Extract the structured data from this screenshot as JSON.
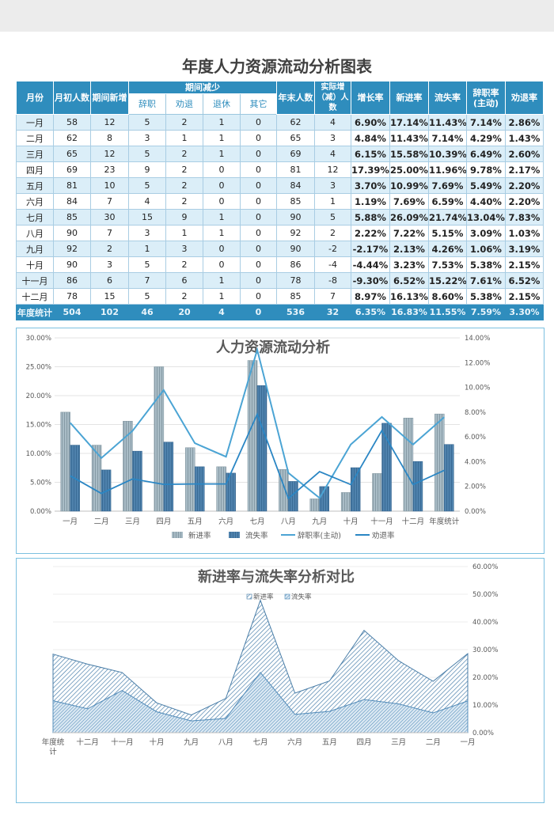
{
  "page": {
    "title": "年度人力资源流动分析图表"
  },
  "table": {
    "headers": {
      "month": "月份",
      "start": "月初人数",
      "new": "期间新增",
      "reduce": "期间减少",
      "resign": "辞职",
      "dismiss": "劝退",
      "retire": "退休",
      "other": "其它",
      "end": "年末人数",
      "net": "实际增（减）人数",
      "growth": "增长率",
      "newrate": "新进率",
      "lossrate": "流失率",
      "resignrate": "辞职率(主动)",
      "dismissrate": "劝退率"
    },
    "rows": [
      [
        "一月",
        "58",
        "12",
        "5",
        "2",
        "1",
        "0",
        "62",
        "4",
        "6.90%",
        "17.14%",
        "11.43%",
        "7.14%",
        "2.86%"
      ],
      [
        "二月",
        "62",
        "8",
        "3",
        "1",
        "1",
        "0",
        "65",
        "3",
        "4.84%",
        "11.43%",
        "7.14%",
        "4.29%",
        "1.43%"
      ],
      [
        "三月",
        "65",
        "12",
        "5",
        "2",
        "1",
        "0",
        "69",
        "4",
        "6.15%",
        "15.58%",
        "10.39%",
        "6.49%",
        "2.60%"
      ],
      [
        "四月",
        "69",
        "23",
        "9",
        "2",
        "0",
        "0",
        "81",
        "12",
        "17.39%",
        "25.00%",
        "11.96%",
        "9.78%",
        "2.17%"
      ],
      [
        "五月",
        "81",
        "10",
        "5",
        "2",
        "0",
        "0",
        "84",
        "3",
        "3.70%",
        "10.99%",
        "7.69%",
        "5.49%",
        "2.20%"
      ],
      [
        "六月",
        "84",
        "7",
        "4",
        "2",
        "0",
        "0",
        "85",
        "1",
        "1.19%",
        "7.69%",
        "6.59%",
        "4.40%",
        "2.20%"
      ],
      [
        "七月",
        "85",
        "30",
        "15",
        "9",
        "1",
        "0",
        "90",
        "5",
        "5.88%",
        "26.09%",
        "21.74%",
        "13.04%",
        "7.83%"
      ],
      [
        "八月",
        "90",
        "7",
        "3",
        "1",
        "1",
        "0",
        "92",
        "2",
        "2.22%",
        "7.22%",
        "5.15%",
        "3.09%",
        "1.03%"
      ],
      [
        "九月",
        "92",
        "2",
        "1",
        "3",
        "0",
        "0",
        "90",
        "-2",
        "-2.17%",
        "2.13%",
        "4.26%",
        "1.06%",
        "3.19%"
      ],
      [
        "十月",
        "90",
        "3",
        "5",
        "2",
        "0",
        "0",
        "86",
        "-4",
        "-4.44%",
        "3.23%",
        "7.53%",
        "5.38%",
        "2.15%"
      ],
      [
        "十一月",
        "86",
        "6",
        "7",
        "6",
        "1",
        "0",
        "78",
        "-8",
        "-9.30%",
        "6.52%",
        "15.22%",
        "7.61%",
        "6.52%"
      ],
      [
        "十二月",
        "78",
        "15",
        "5",
        "2",
        "1",
        "0",
        "85",
        "7",
        "8.97%",
        "16.13%",
        "8.60%",
        "5.38%",
        "2.15%"
      ]
    ],
    "total": [
      "年度统计",
      "504",
      "102",
      "46",
      "20",
      "4",
      "0",
      "536",
      "32",
      "6.35%",
      "16.83%",
      "11.55%",
      "7.59%",
      "3.30%"
    ]
  },
  "chart_data": [
    {
      "type": "bar",
      "title": "人力资源流动分析",
      "categories": [
        "一月",
        "二月",
        "三月",
        "四月",
        "五月",
        "六月",
        "七月",
        "八月",
        "九月",
        "十月",
        "十一月",
        "十二月",
        "年度统计"
      ],
      "y_ticks": [
        "0.00%",
        "5.00%",
        "10.00%",
        "15.00%",
        "20.00%",
        "25.00%",
        "30.00%"
      ],
      "y2_ticks": [
        "0.00%",
        "2.00%",
        "4.00%",
        "6.00%",
        "8.00%",
        "10.00%",
        "12.00%",
        "14.00%"
      ],
      "ylim": [
        0,
        30
      ],
      "y2lim": [
        0,
        14
      ],
      "legend_position": "bottom",
      "series": [
        {
          "name": "新进率",
          "kind": "bar",
          "axis": "left",
          "color": "#8fa3ad",
          "values": [
            17.14,
            11.43,
            15.58,
            25.0,
            10.99,
            7.69,
            26.09,
            7.22,
            2.13,
            3.23,
            6.52,
            16.13,
            16.83
          ]
        },
        {
          "name": "流失率",
          "kind": "bar",
          "axis": "left",
          "color": "#3b6f9c",
          "values": [
            11.43,
            7.14,
            10.39,
            11.96,
            7.69,
            6.59,
            21.74,
            5.15,
            4.26,
            7.53,
            15.22,
            8.6,
            11.55
          ]
        },
        {
          "name": "辞职率(主动)",
          "kind": "line",
          "axis": "right",
          "color": "#4ba4d4",
          "values": [
            7.14,
            4.29,
            6.49,
            9.78,
            5.49,
            4.4,
            13.04,
            3.09,
            1.06,
            5.38,
            7.61,
            5.38,
            7.59
          ]
        },
        {
          "name": "劝退率",
          "kind": "line",
          "axis": "right",
          "color": "#2a86c4",
          "values": [
            2.86,
            1.43,
            2.6,
            2.17,
            2.2,
            2.2,
            7.83,
            1.03,
            3.19,
            2.15,
            6.52,
            2.15,
            3.3
          ]
        }
      ]
    },
    {
      "type": "area",
      "title": "新进率与流失率分析对比",
      "categories": [
        "年度统计",
        "十二月",
        "十一月",
        "十月",
        "九月",
        "八月",
        "七月",
        "六月",
        "五月",
        "四月",
        "三月",
        "二月",
        "一月"
      ],
      "x_tick_labels": [
        [
          "年度统",
          "计"
        ],
        [
          "十二月"
        ],
        [
          "十一月"
        ],
        [
          "十月"
        ],
        [
          "九月"
        ],
        [
          "八月"
        ],
        [
          "七月"
        ],
        [
          "六月"
        ],
        [
          "五月"
        ],
        [
          "四月"
        ],
        [
          "三月"
        ],
        [
          "二月"
        ],
        [
          "一月"
        ]
      ],
      "y2_ticks": [
        "0.00%",
        "10.00%",
        "20.00%",
        "30.00%",
        "40.00%",
        "50.00%",
        "60.00%"
      ],
      "y2lim": [
        0,
        60
      ],
      "stacked": true,
      "legend_position": "top",
      "series": [
        {
          "name": "新进率",
          "color": "#5a8cb3",
          "values": [
            16.83,
            16.13,
            6.52,
            3.23,
            2.13,
            7.22,
            26.09,
            7.69,
            10.99,
            25.0,
            15.58,
            11.43,
            17.14
          ]
        },
        {
          "name": "流失率",
          "color": "#4a80ad",
          "values": [
            11.55,
            8.6,
            15.22,
            7.53,
            4.26,
            5.15,
            21.74,
            6.59,
            7.69,
            11.96,
            10.39,
            7.14,
            11.43
          ]
        }
      ]
    }
  ]
}
